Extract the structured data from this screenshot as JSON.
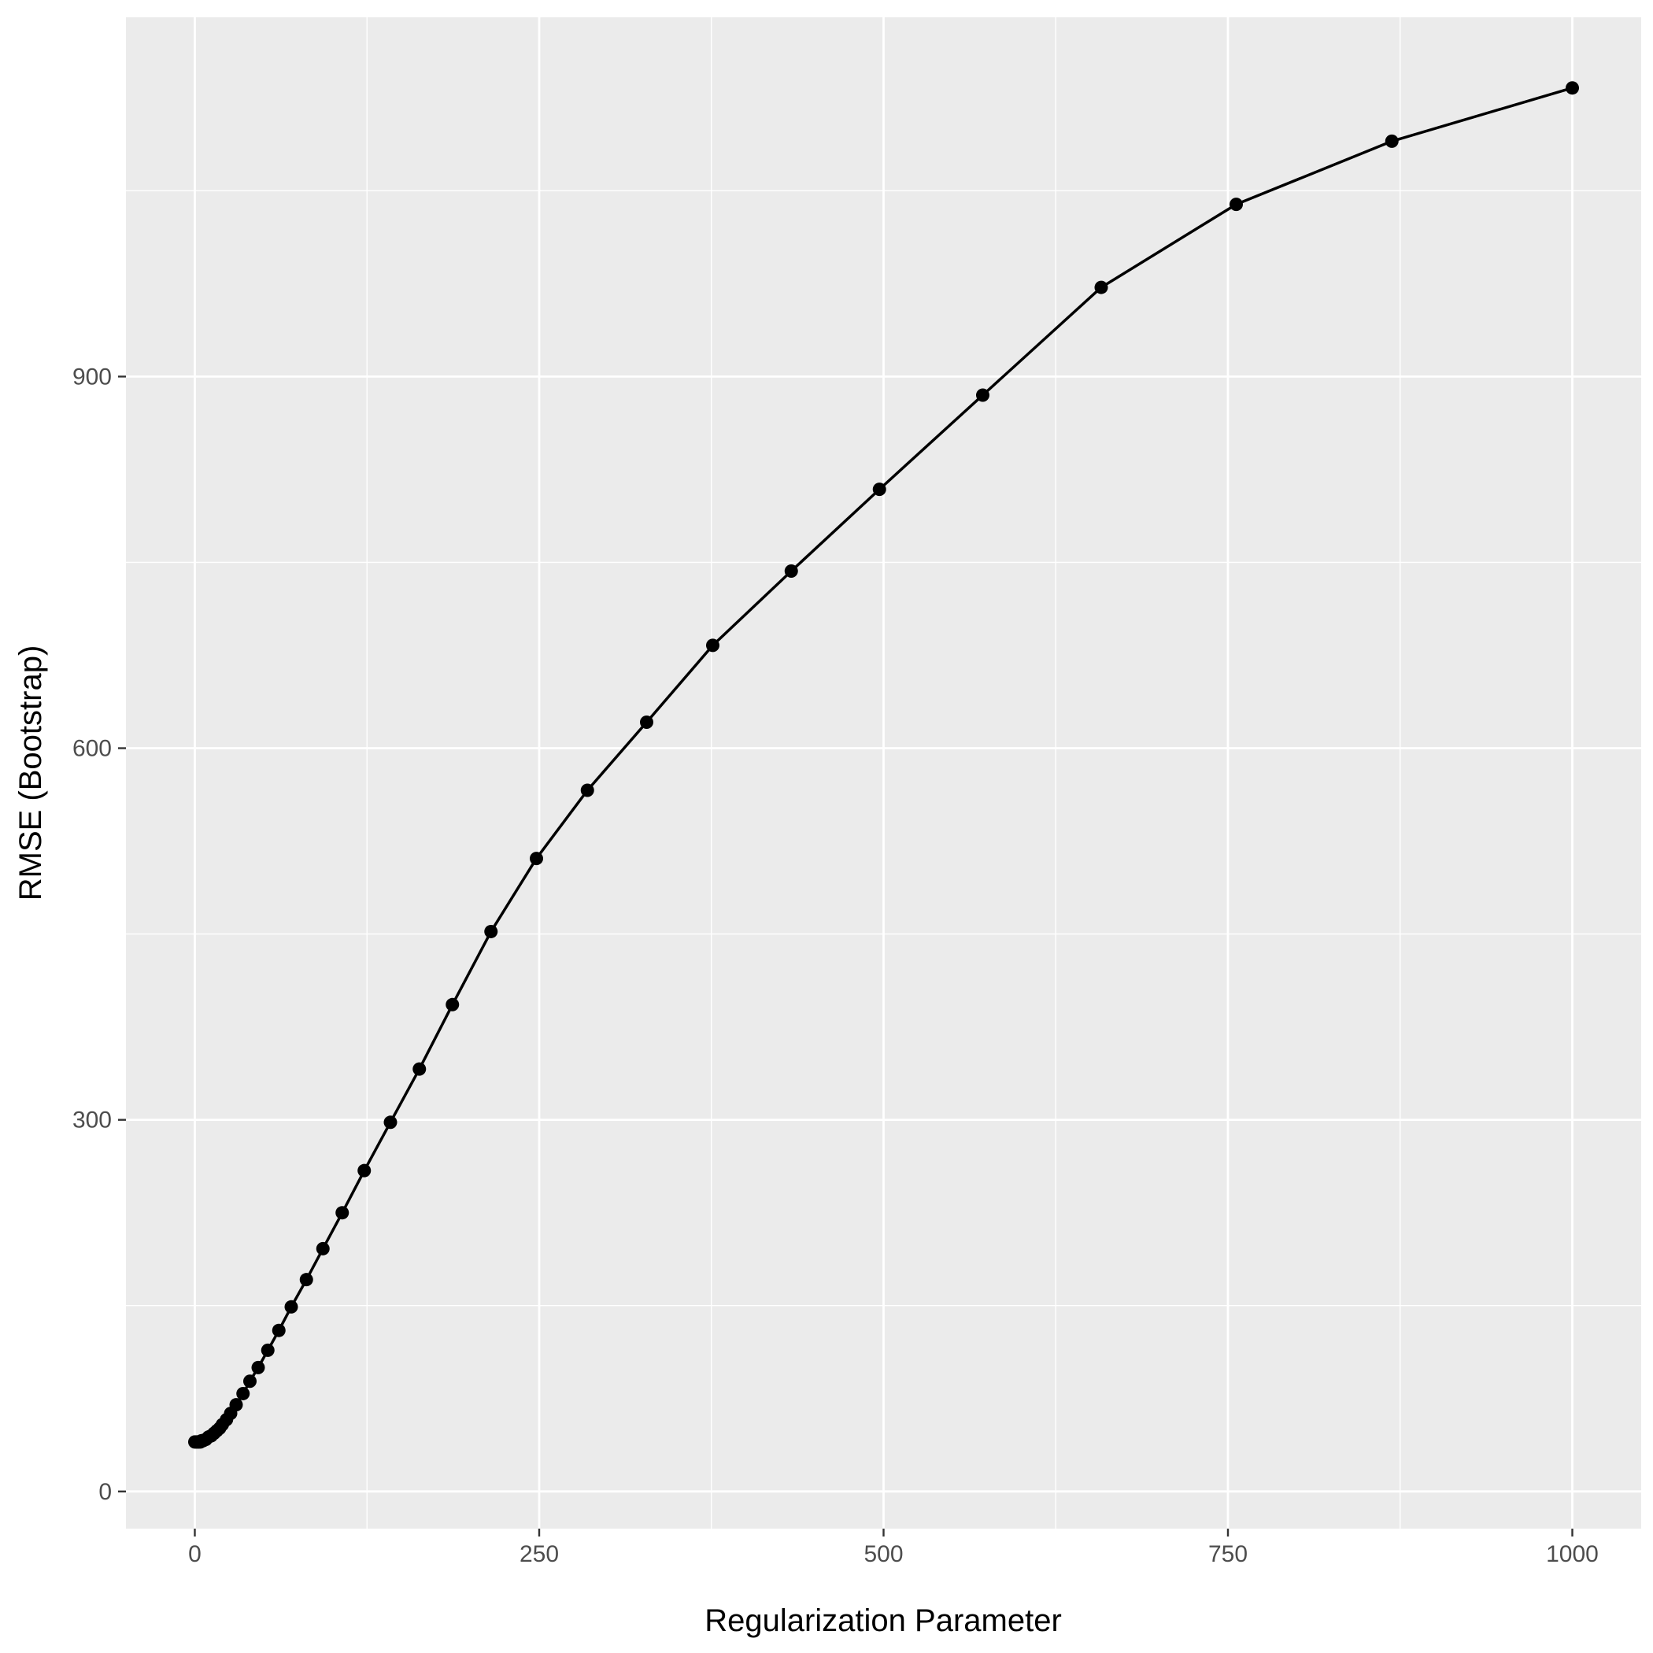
{
  "chart_data": {
    "type": "line",
    "xlabel": "Regularization Parameter",
    "ylabel": "RMSE (Bootstrap)",
    "xlim": [
      -50,
      1050
    ],
    "ylim": [
      -30,
      1190
    ],
    "x_ticks": [
      0,
      250,
      500,
      750,
      1000
    ],
    "x_minor": [
      125,
      375,
      625,
      875
    ],
    "y_ticks": [
      0,
      300,
      600,
      900
    ],
    "y_minor": [
      150,
      450,
      750,
      1050
    ],
    "grid": true,
    "legend": "none",
    "colors": {
      "panel": "#ebebeb",
      "grid": "#ffffff",
      "series": "#000000"
    },
    "series": [
      {
        "x": [
          0,
          1,
          2,
          3,
          4,
          5,
          6,
          8,
          10,
          12,
          14,
          16,
          18,
          20,
          23,
          26,
          30,
          35,
          40,
          46,
          53,
          61,
          70,
          81,
          93,
          107,
          123,
          142,
          163,
          187,
          215,
          248,
          285,
          328,
          376,
          433,
          497,
          572,
          658,
          756,
          869,
          1000
        ],
        "y": [
          40,
          40,
          40,
          40,
          40,
          41,
          41,
          42,
          44,
          45,
          47,
          49,
          51,
          54,
          58,
          63,
          70,
          79,
          89,
          100,
          114,
          130,
          149,
          171,
          196,
          225,
          259,
          298,
          341,
          393,
          452,
          511,
          566,
          621,
          683,
          743,
          809,
          885,
          972,
          1039,
          1090,
          1133
        ]
      }
    ]
  }
}
